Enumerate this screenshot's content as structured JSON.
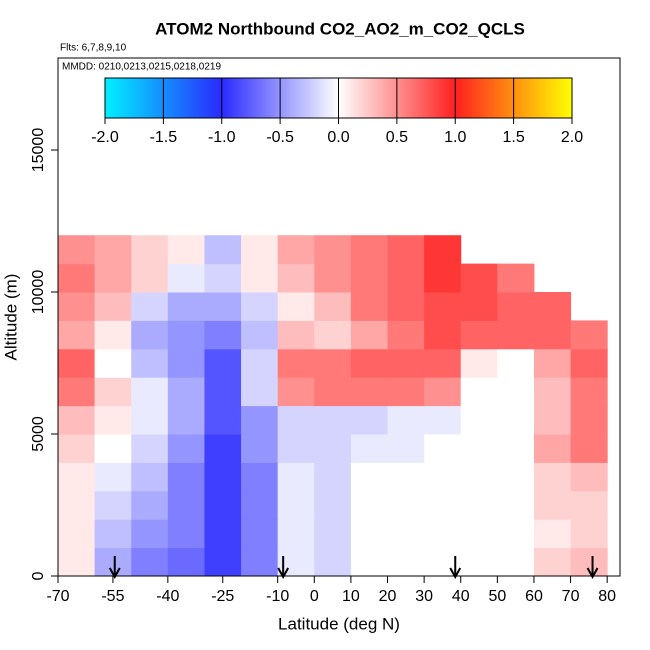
{
  "chart_data": {
    "type": "heatmap",
    "title": "ATOM2 Northbound CO2_AO2_m_CO2_QCLS",
    "subtitle": "Flts: 6,7,8,9,10",
    "annotation": "MMDD: 0210,0213,0215,0218,0219",
    "x_label": "Latitude (deg N)",
    "y_label": "Altitude (m)",
    "xlim": [
      -70,
      83.5
    ],
    "ylim": [
      0,
      18240
    ],
    "xticks": [
      -70,
      -55,
      -40,
      -25,
      -10,
      0,
      10,
      20,
      30,
      40,
      50,
      60,
      70,
      80
    ],
    "yticks": [
      0,
      5000,
      10000,
      15000
    ],
    "lat_edges": [
      -70,
      -60,
      -50,
      -40,
      -30,
      -20,
      -10,
      0,
      10,
      20,
      30,
      40,
      50,
      60,
      70,
      80
    ],
    "alt_edges": [
      0,
      1000,
      2000,
      3000,
      4000,
      5000,
      6000,
      7000,
      8000,
      9000,
      10000,
      11000,
      12000
    ],
    "values": [
      [
        0.1,
        -0.4,
        -0.6,
        -0.7,
        -0.9,
        -0.6,
        -0.1,
        -0.2,
        0,
        0,
        0,
        0,
        0,
        0.2,
        0.3
      ],
      [
        0.1,
        -0.3,
        -0.5,
        -0.6,
        -0.9,
        -0.6,
        -0.1,
        -0.2,
        0,
        0,
        0,
        0,
        0,
        0.1,
        0.2
      ],
      [
        0.1,
        -0.2,
        -0.4,
        -0.6,
        -0.9,
        -0.6,
        -0.1,
        -0.2,
        0,
        0,
        0,
        0,
        0,
        0.2,
        0.2
      ],
      [
        0.1,
        -0.1,
        -0.3,
        -0.6,
        -0.9,
        -0.6,
        -0.1,
        -0.2,
        0,
        0,
        0,
        0,
        0,
        0.2,
        0.3
      ],
      [
        0.2,
        0,
        -0.2,
        -0.5,
        -0.9,
        -0.5,
        -0.2,
        -0.2,
        -0.1,
        -0.1,
        0,
        0,
        0,
        0.4,
        0.6
      ],
      [
        0.3,
        0.1,
        -0.1,
        -0.4,
        -0.8,
        -0.5,
        -0.2,
        -0.2,
        -0.2,
        -0.1,
        -0.1,
        0,
        0,
        0.3,
        0.6
      ],
      [
        0.6,
        0.2,
        -0.1,
        -0.4,
        -0.8,
        -0.2,
        0.5,
        0.6,
        0.6,
        0.6,
        0.5,
        0,
        0,
        0.3,
        0.6
      ],
      [
        0.7,
        0,
        -0.3,
        -0.5,
        -0.8,
        -0.2,
        0.6,
        0.6,
        0.7,
        0.7,
        0.7,
        0.1,
        0,
        0.4,
        0.7
      ],
      [
        0.4,
        0.1,
        -0.4,
        -0.5,
        -0.6,
        -0.3,
        0.3,
        0.2,
        0.4,
        0.6,
        0.8,
        0.7,
        0.7,
        0.7,
        0.6
      ],
      [
        0.5,
        0.3,
        -0.2,
        -0.4,
        -0.4,
        -0.2,
        0.1,
        0.3,
        0.6,
        0.7,
        0.8,
        0.8,
        0.7,
        0.7,
        null
      ],
      [
        0.6,
        0.4,
        0.2,
        -0.1,
        -0.2,
        0.1,
        0.3,
        0.5,
        0.6,
        0.7,
        0.9,
        0.8,
        0.6,
        null,
        null
      ],
      [
        0.5,
        0.4,
        0.2,
        0.1,
        -0.3,
        0.1,
        0.4,
        0.5,
        0.6,
        0.7,
        0.9,
        null,
        null,
        null,
        null
      ]
    ],
    "arrows": [
      -54.5,
      -8.5,
      38.5,
      76
    ],
    "clim": [
      -2,
      2
    ],
    "colorscale": [
      {
        "value": -2,
        "color": "#00f0ff"
      },
      {
        "value": -1,
        "color": "#2a2aff"
      },
      {
        "value": 0,
        "color": "#ffffff"
      },
      {
        "value": 1,
        "color": "#ff2020"
      },
      {
        "value": 2,
        "color": "#ffff00"
      }
    ],
    "cticks": [
      {
        "value": -2,
        "label": "-2.0"
      },
      {
        "value": -1.5,
        "label": "-1.5"
      },
      {
        "value": -1,
        "label": "-1.0"
      },
      {
        "value": -0.5,
        "label": "-0.5"
      },
      {
        "value": 0,
        "label": "0.0"
      },
      {
        "value": 0.5,
        "label": "0.5"
      },
      {
        "value": 1,
        "label": "1.0"
      },
      {
        "value": 1.5,
        "label": "1.5"
      },
      {
        "value": 2,
        "label": "2.0"
      }
    ]
  }
}
